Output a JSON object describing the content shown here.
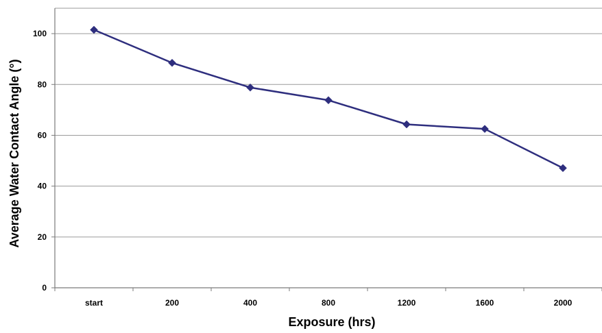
{
  "chart_data": {
    "type": "line",
    "title": "",
    "xlabel": "Exposure (hrs)",
    "ylabel": "Average Water Contact Angle (°)",
    "categories": [
      "start",
      "200",
      "400",
      "800",
      "1200",
      "1600",
      "2000"
    ],
    "series": [
      {
        "values": [
          101.5,
          88.5,
          78.8,
          73.8,
          64.3,
          62.5,
          47.1
        ]
      }
    ],
    "ylim": [
      0,
      110
    ],
    "yticks": [
      0,
      20,
      40,
      60,
      80,
      100
    ],
    "grid": "horizontal",
    "legend": "none",
    "marker": "diamond",
    "line_color": "#2e2e7e"
  }
}
